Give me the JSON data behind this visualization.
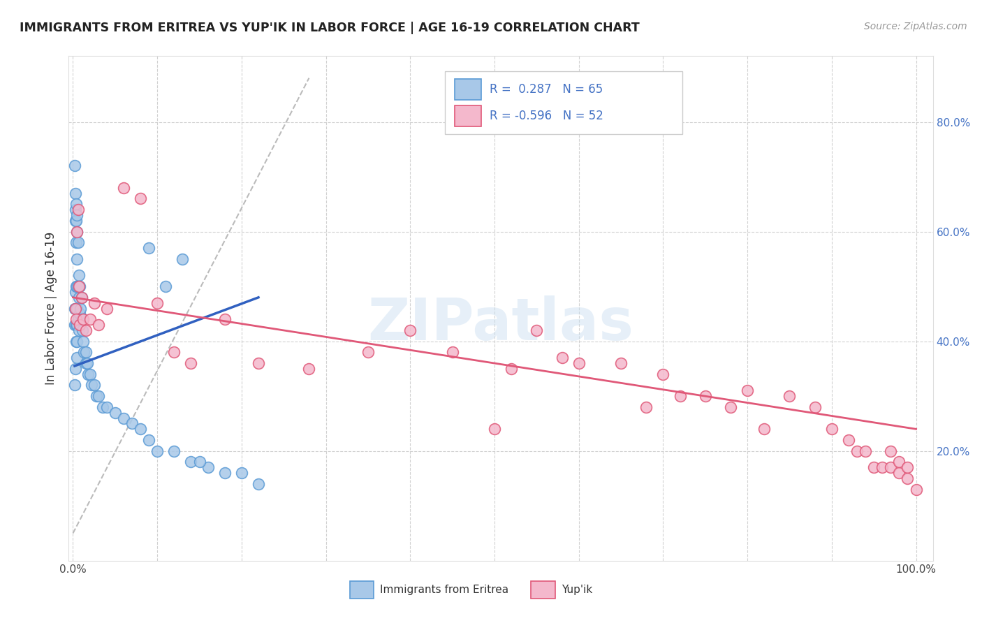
{
  "title": "IMMIGRANTS FROM ERITREA VS YUP'IK IN LABOR FORCE | AGE 16-19 CORRELATION CHART",
  "source": "Source: ZipAtlas.com",
  "ylabel": "In Labor Force | Age 16-19",
  "legend_R1": "0.287",
  "legend_N1": "65",
  "legend_R2": "-0.596",
  "legend_N2": "52",
  "color_eritrea_fill": "#a8c8e8",
  "color_eritrea_edge": "#5b9bd5",
  "color_yupik_fill": "#f4b8cc",
  "color_yupik_edge": "#e05878",
  "color_eritrea_line": "#3060c0",
  "color_yupik_line": "#e05878",
  "color_dash": "#bbbbbb",
  "eritrea_x": [
    0.002,
    0.002,
    0.002,
    0.002,
    0.003,
    0.003,
    0.003,
    0.003,
    0.003,
    0.004,
    0.004,
    0.004,
    0.004,
    0.004,
    0.004,
    0.004,
    0.005,
    0.005,
    0.005,
    0.005,
    0.005,
    0.005,
    0.005,
    0.005,
    0.006,
    0.006,
    0.006,
    0.007,
    0.007,
    0.007,
    0.008,
    0.008,
    0.009,
    0.01,
    0.01,
    0.011,
    0.012,
    0.013,
    0.015,
    0.015,
    0.017,
    0.018,
    0.02,
    0.022,
    0.025,
    0.028,
    0.03,
    0.035,
    0.04,
    0.05,
    0.06,
    0.07,
    0.08,
    0.09,
    0.1,
    0.12,
    0.14,
    0.16,
    0.18,
    0.2,
    0.22,
    0.09,
    0.11,
    0.13,
    0.15
  ],
  "eritrea_y": [
    0.72,
    0.46,
    0.43,
    0.32,
    0.67,
    0.64,
    0.62,
    0.49,
    0.35,
    0.65,
    0.62,
    0.58,
    0.5,
    0.46,
    0.43,
    0.4,
    0.63,
    0.6,
    0.55,
    0.5,
    0.46,
    0.43,
    0.4,
    0.37,
    0.58,
    0.5,
    0.44,
    0.52,
    0.48,
    0.42,
    0.5,
    0.45,
    0.46,
    0.48,
    0.44,
    0.42,
    0.4,
    0.38,
    0.38,
    0.36,
    0.36,
    0.34,
    0.34,
    0.32,
    0.32,
    0.3,
    0.3,
    0.28,
    0.28,
    0.27,
    0.26,
    0.25,
    0.24,
    0.22,
    0.2,
    0.2,
    0.18,
    0.17,
    0.16,
    0.16,
    0.14,
    0.57,
    0.5,
    0.55,
    0.18
  ],
  "yupik_x": [
    0.003,
    0.004,
    0.005,
    0.006,
    0.007,
    0.008,
    0.01,
    0.012,
    0.015,
    0.02,
    0.025,
    0.03,
    0.04,
    0.06,
    0.08,
    0.1,
    0.12,
    0.14,
    0.18,
    0.22,
    0.28,
    0.35,
    0.4,
    0.45,
    0.5,
    0.52,
    0.55,
    0.58,
    0.6,
    0.65,
    0.68,
    0.7,
    0.72,
    0.75,
    0.78,
    0.8,
    0.82,
    0.85,
    0.88,
    0.9,
    0.92,
    0.93,
    0.94,
    0.95,
    0.96,
    0.97,
    0.97,
    0.98,
    0.98,
    0.99,
    0.99,
    1.0
  ],
  "yupik_y": [
    0.46,
    0.44,
    0.6,
    0.64,
    0.5,
    0.43,
    0.48,
    0.44,
    0.42,
    0.44,
    0.47,
    0.43,
    0.46,
    0.68,
    0.66,
    0.47,
    0.38,
    0.36,
    0.44,
    0.36,
    0.35,
    0.38,
    0.42,
    0.38,
    0.24,
    0.35,
    0.42,
    0.37,
    0.36,
    0.36,
    0.28,
    0.34,
    0.3,
    0.3,
    0.28,
    0.31,
    0.24,
    0.3,
    0.28,
    0.24,
    0.22,
    0.2,
    0.2,
    0.17,
    0.17,
    0.17,
    0.2,
    0.16,
    0.18,
    0.17,
    0.15,
    0.13
  ],
  "eritrea_line_x": [
    0.002,
    0.22
  ],
  "eritrea_line_y": [
    0.355,
    0.48
  ],
  "yupik_line_x": [
    0.0,
    1.0
  ],
  "yupik_line_y": [
    0.48,
    0.24
  ],
  "dash_line_x": [
    0.0,
    0.28
  ],
  "dash_line_y": [
    0.05,
    0.88
  ],
  "xlim": [
    -0.005,
    1.02
  ],
  "ylim": [
    0.0,
    0.92
  ],
  "ytick_pos": [
    0.2,
    0.4,
    0.6,
    0.8
  ],
  "ytick_labels": [
    "20.0%",
    "40.0%",
    "60.0%",
    "80.0%"
  ],
  "xtick_pos": [
    0.0,
    0.1,
    0.2,
    0.3,
    0.4,
    0.5,
    0.6,
    0.7,
    0.8,
    0.9,
    1.0
  ],
  "xtick_labels": [
    "0.0%",
    "",
    "",
    "",
    "",
    "",
    "",
    "",
    "",
    "",
    "100.0%"
  ]
}
